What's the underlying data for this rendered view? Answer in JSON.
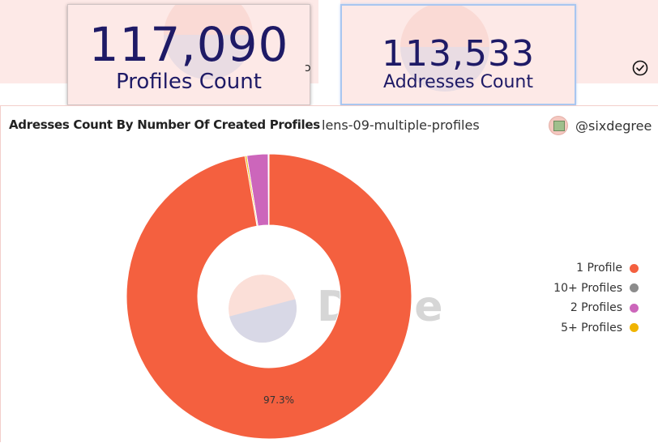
{
  "counters": [
    {
      "value": "117,090",
      "label": "Profiles Count"
    },
    {
      "value": "113,533",
      "label": "Addresses Count"
    }
  ],
  "header_fragment": "ɔ",
  "chart_panel": {
    "title": "Adresses Count By Number Of Created Profiles",
    "query_name": "lens-09-multiple-profiles",
    "author": "@sixdegree",
    "watermark": "Dune"
  },
  "chart_data": {
    "type": "pie",
    "donut": true,
    "title": "Adresses Count By Number Of Created Profiles",
    "slice_labels_visible": [
      "97.3%"
    ],
    "series": [
      {
        "name": "1 Profile",
        "value": 97.3,
        "color": "#f4603f"
      },
      {
        "name": "10+ Profiles",
        "value": 0.1,
        "color": "#8c8c8c"
      },
      {
        "name": "2 Profiles",
        "value": 2.4,
        "color": "#cc66bb"
      },
      {
        "name": "5+ Profiles",
        "value": 0.2,
        "color": "#f0b400"
      }
    ],
    "legend_position": "right"
  }
}
